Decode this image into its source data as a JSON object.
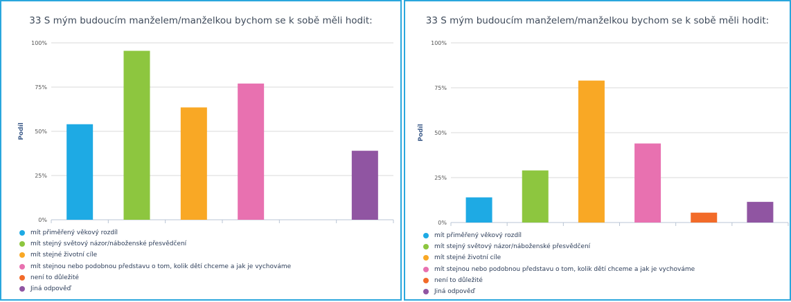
{
  "chart_data": [
    {
      "type": "bar",
      "title": "33 S mým budoucím manželem/manželkou bychom se k sobě měli hodit:",
      "ylabel": "Podíl",
      "ylim": [
        0,
        100
      ],
      "yticks": [
        "0%",
        "25%",
        "50%",
        "75%",
        "100%"
      ],
      "grid": true,
      "legend_position": "bottom-left",
      "categories": [
        "mít přiměřený věkový rozdíl",
        "mít stejný světový názor/náboženské přesvědčení",
        "mít stejné životní cíle",
        "mít stejnou nebo podobnou představu o tom, kolik dětí chceme a jak je vychováme",
        "není to důležité",
        "Jiná odpověď"
      ],
      "values": [
        54,
        95.5,
        63.5,
        77,
        0,
        39
      ],
      "colors": [
        "#1eaae4",
        "#8dc63f",
        "#f9a825",
        "#e871b0",
        "#f26b29",
        "#9055a2"
      ]
    },
    {
      "type": "bar",
      "title": "33 S mým budoucím manželem/manželkou bychom se k sobě měli hodit:",
      "ylabel": "Podíl",
      "ylim": [
        0,
        100
      ],
      "yticks": [
        "0%",
        "25%",
        "50%",
        "75%",
        "100%"
      ],
      "grid": true,
      "legend_position": "bottom-left",
      "categories": [
        "mít přiměřený věkový rozdíl",
        "mít stejný světový názor/náboženské přesvědčení",
        "mít stejné životní cíle",
        "mít stejnou nebo podobnou představu o tom, kolik dětí chceme a jak je vychováme",
        "není to důležité",
        "Jiná odpověď"
      ],
      "values": [
        14,
        29,
        79,
        44,
        5.5,
        11.5
      ],
      "colors": [
        "#1eaae4",
        "#8dc63f",
        "#f9a825",
        "#e871b0",
        "#f26b29",
        "#9055a2"
      ]
    }
  ]
}
